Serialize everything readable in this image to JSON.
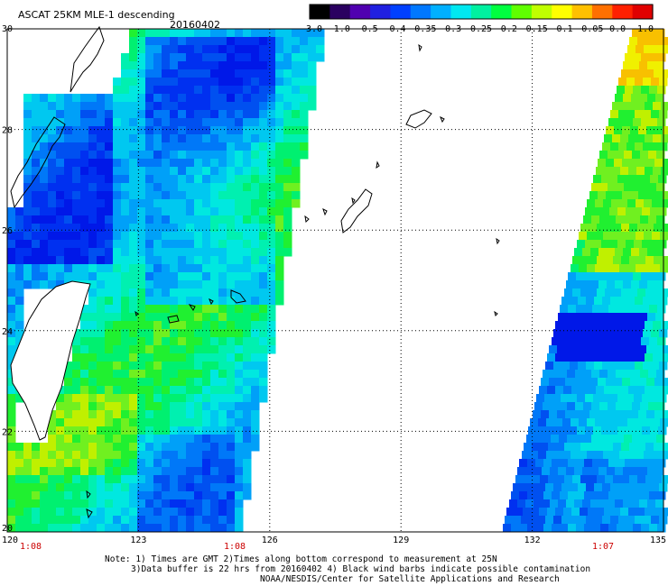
{
  "title": "ASCAT 25KM MLE-1 descending",
  "date": "20160402",
  "colorbar": {
    "labels": [
      "-3.0",
      "-1.0",
      "-0.5",
      "-0.4",
      "-0.35",
      "-0.3",
      "-0.25",
      "-0.2",
      "-0.15",
      "-0.1",
      "-0.05",
      "0.0",
      "1.0"
    ],
    "colors": [
      "#000000",
      "#2a0060",
      "#5000b0",
      "#2020e0",
      "#0040ff",
      "#0078ff",
      "#00b0ff",
      "#00e8f0",
      "#00f0a0",
      "#00ff40",
      "#60ff00",
      "#c0ff00",
      "#ffff00",
      "#ffc000",
      "#ff7000",
      "#ff2000",
      "#e00000"
    ]
  },
  "lon_labels": [
    "120",
    "123",
    "126",
    "129",
    "132",
    "135"
  ],
  "lat_labels": [
    "30",
    "28",
    "26",
    "24",
    "22",
    "20"
  ],
  "time_labels": [
    "1:08",
    "1:08",
    "1:07"
  ],
  "notes": [
    "Note: 1) Times are GMT 2)Times along bottom correspond to measurement at 25N",
    "3)Data buffer is 22 hrs from 20160402 4) Black wind barbs indicate possible contamination",
    "NOAA/NESDIS/Center for Satellite Applications and Research"
  ]
}
